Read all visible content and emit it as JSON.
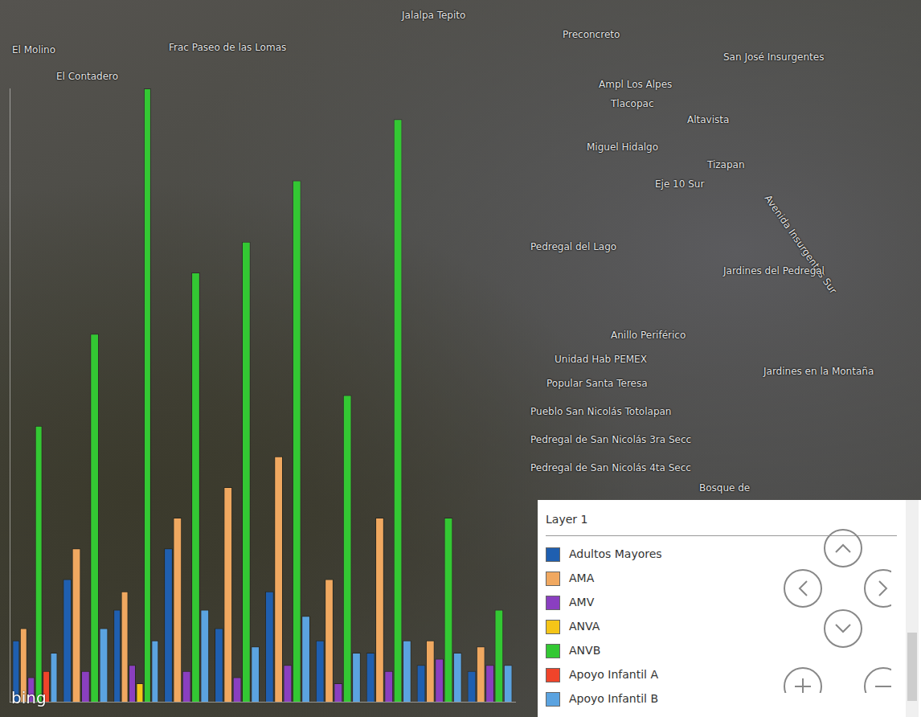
{
  "chart_data": {
    "type": "bar",
    "categories": [
      null,
      null,
      null,
      null,
      null,
      null,
      null,
      null,
      null,
      null
    ],
    "series": [
      {
        "name": "Adultos Mayores",
        "color": "#1f5fb0",
        "values": [
          10,
          20,
          15,
          25,
          12,
          18,
          10,
          8,
          6,
          5
        ]
      },
      {
        "name": "AMA",
        "color": "#f0a860",
        "values": [
          12,
          25,
          18,
          30,
          35,
          40,
          20,
          30,
          10,
          9
        ]
      },
      {
        "name": "AMV",
        "color": "#8a3fc0",
        "values": [
          4,
          5,
          6,
          5,
          4,
          6,
          3,
          5,
          7,
          6
        ]
      },
      {
        "name": "ANVA",
        "color": "#f5c518",
        "values": [
          null,
          null,
          3,
          null,
          null,
          null,
          null,
          null,
          null,
          null
        ]
      },
      {
        "name": "ANVB",
        "color": "#33c833",
        "values": [
          45,
          60,
          100,
          70,
          75,
          85,
          50,
          95,
          30,
          15
        ]
      },
      {
        "name": "Apoyo Infantil A",
        "color": "#f0442a",
        "values": [
          5,
          null,
          null,
          null,
          null,
          null,
          null,
          null,
          null,
          null
        ]
      },
      {
        "name": "Apoyo Infantil B",
        "color": "#5ba3e0",
        "values": [
          8,
          12,
          10,
          15,
          9,
          14,
          8,
          10,
          8,
          6
        ]
      }
    ],
    "ylim": [
      0,
      100
    ],
    "tick_labels": false,
    "grid": false,
    "legend": "bottom-right",
    "legend_title": "Layer 1"
  },
  "map_labels": [
    "El Molino",
    "Frac Paseo de las Lomas",
    "El Contadero",
    "Jalalpa Tepito",
    "Preconcreto",
    "San José Insurgentes",
    "Ampl Los Alpes",
    "Tlacopac",
    "Altavista",
    "Miguel Hidalgo",
    "Tizapan",
    "Eje 10 Sur",
    "Avenida Insurgentes Sur",
    "Jardines del Pedregal",
    "Pedregal del Lago",
    "Anillo Periférico",
    "Unidad Hab PEMEX",
    "Popular Santa Teresa",
    "Jardines en la Montaña",
    "Pueblo San Nicolás Totolapan",
    "Pedregal de San Nicolás 3ra Secc",
    "Pedregal de San Nicolás 4ta Secc",
    "Bosque de"
  ],
  "logo": "bing"
}
